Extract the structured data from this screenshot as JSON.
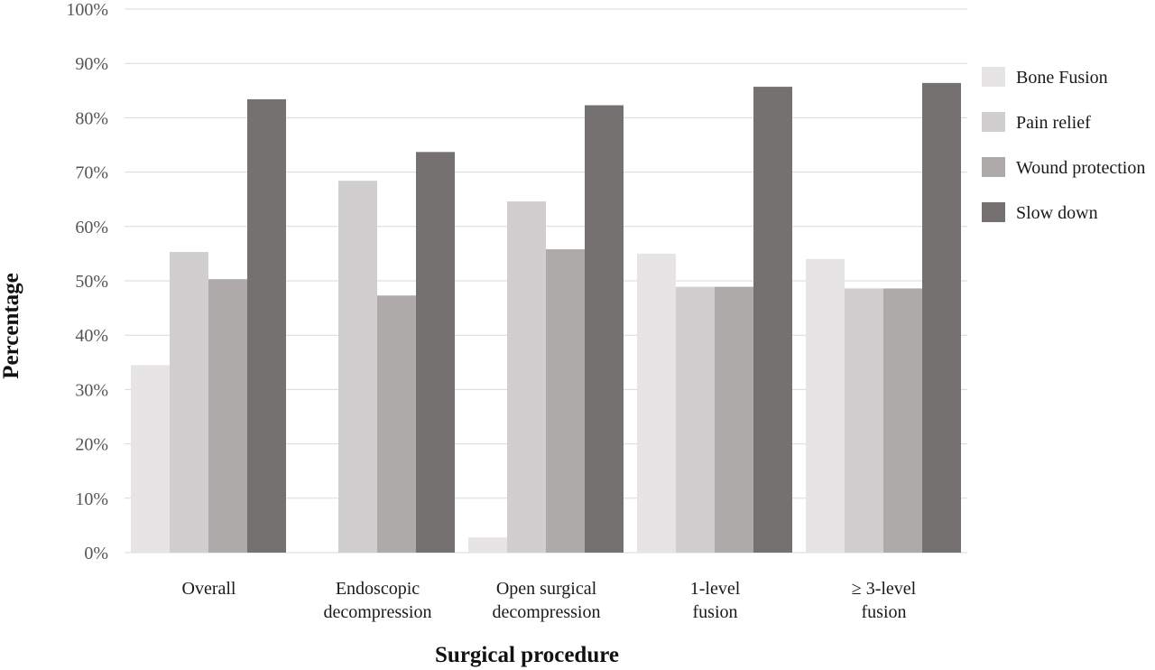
{
  "chart_data": {
    "type": "bar",
    "title": "",
    "xlabel": "Surgical procedure",
    "ylabel": "Percentage",
    "ylim": [
      0,
      100
    ],
    "yticks": [
      "0%",
      "10%",
      "20%",
      "30%",
      "40%",
      "50%",
      "60%",
      "70%",
      "80%",
      "90%",
      "100%"
    ],
    "grid": true,
    "legend_position": "right",
    "categories": [
      [
        "Overall"
      ],
      [
        "Endoscopic",
        "decompression"
      ],
      [
        "Open surgical",
        "decompression"
      ],
      [
        "1-level",
        "fusion"
      ],
      [
        "≥ 3-level",
        "fusion"
      ]
    ],
    "series": [
      {
        "name": "Bone Fusion",
        "color": "#e6e4e5",
        "values": [
          34.5,
          0,
          2.8,
          55.0,
          54.0
        ]
      },
      {
        "name": "Pain relief",
        "color": "#d0cecf",
        "values": [
          55.3,
          68.4,
          64.6,
          48.9,
          48.6
        ]
      },
      {
        "name": "Wound protection",
        "color": "#aeaaaa",
        "values": [
          50.3,
          47.3,
          55.8,
          48.9,
          48.6
        ]
      },
      {
        "name": "Slow down",
        "color": "#767171",
        "values": [
          83.4,
          73.7,
          82.3,
          85.7,
          86.4
        ]
      }
    ]
  }
}
